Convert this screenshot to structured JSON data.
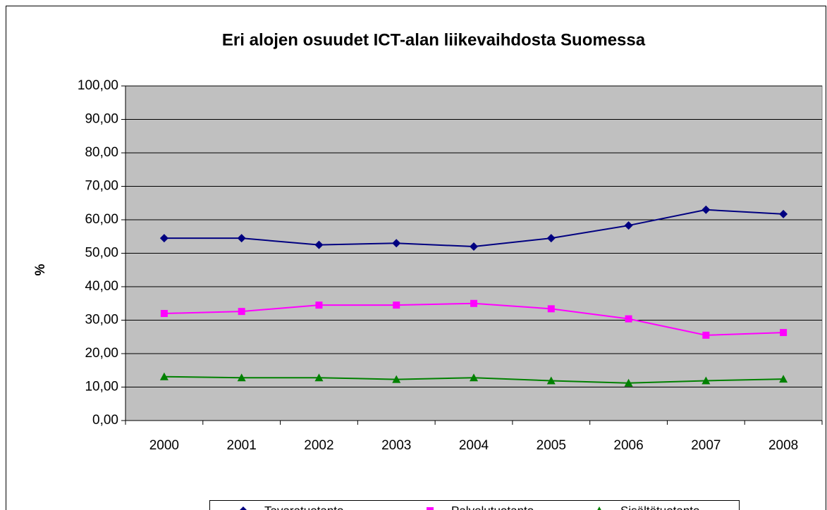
{
  "chart_data": {
    "type": "line",
    "title": "Eri alojen osuudet ICT-alan liikevaihdosta Suomessa",
    "y_label": "%",
    "categories": [
      "2000",
      "2001",
      "2002",
      "2003",
      "2004",
      "2005",
      "2006",
      "2007",
      "2008"
    ],
    "series": [
      {
        "name": "Tavaratuotanto",
        "color": "#000080",
        "marker": "diamond",
        "values": [
          54.5,
          54.5,
          52.5,
          53.0,
          52.0,
          54.5,
          58.3,
          63.0,
          61.7
        ]
      },
      {
        "name": "Palvelutuotanto",
        "color": "#ff00ff",
        "marker": "square",
        "values": [
          32.0,
          32.6,
          34.5,
          34.5,
          35.0,
          33.4,
          30.4,
          25.5,
          26.3
        ]
      },
      {
        "name": "Sisältötuotanto",
        "color": "#008000",
        "marker": "triangle",
        "values": [
          13.1,
          12.8,
          12.8,
          12.3,
          12.8,
          11.9,
          11.2,
          11.9,
          12.4
        ]
      }
    ],
    "ylim": [
      0,
      100
    ],
    "yticks": [
      {
        "value": 0,
        "label": "0,00"
      },
      {
        "value": 10,
        "label": "10,00"
      },
      {
        "value": 20,
        "label": "20,00"
      },
      {
        "value": 30,
        "label": "30,00"
      },
      {
        "value": 40,
        "label": "40,00"
      },
      {
        "value": 50,
        "label": "50,00"
      },
      {
        "value": 60,
        "label": "60,00"
      },
      {
        "value": 70,
        "label": "70,00"
      },
      {
        "value": 80,
        "label": "80,00"
      },
      {
        "value": 90,
        "label": "90,00"
      },
      {
        "value": 100,
        "label": "100,00"
      }
    ],
    "grid": true,
    "legend": "bottom",
    "plot_background": "#c0c0c0"
  }
}
